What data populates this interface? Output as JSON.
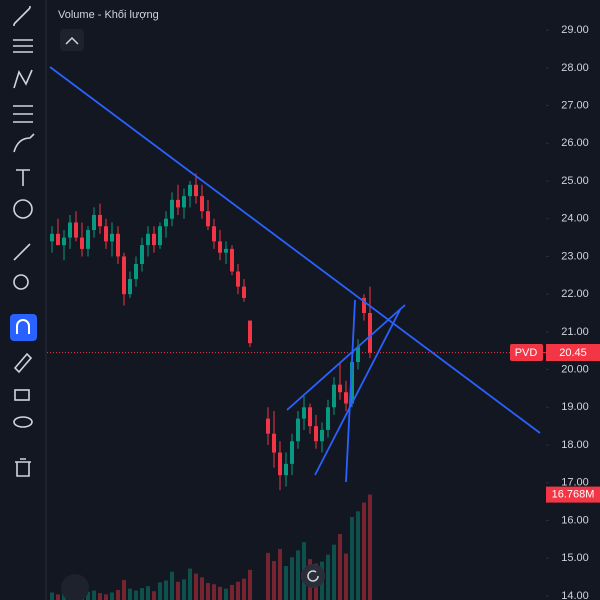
{
  "chart_data": {
    "type": "candlestick",
    "legend_text": "Volume - Khối lượng",
    "symbol": "PVD",
    "last_price": 20.45,
    "last_price_label": "20.45",
    "last_volume": 16.768,
    "last_volume_label": "16.768M",
    "ylim": [
      13.89,
      29.8
    ],
    "yticks": [
      {
        "value": 14,
        "label": "14.00"
      },
      {
        "value": 15,
        "label": "15.00"
      },
      {
        "value": 16,
        "label": "16.00"
      },
      {
        "value": 17,
        "label": "17.00"
      },
      {
        "value": 18,
        "label": "18.00"
      },
      {
        "value": 19,
        "label": "19.00"
      },
      {
        "value": 20,
        "label": "20.00"
      },
      {
        "value": 21,
        "label": "21.00"
      },
      {
        "value": 22,
        "label": "22.00"
      },
      {
        "value": 23,
        "label": "23.00"
      },
      {
        "value": 24,
        "label": "24.00"
      },
      {
        "value": 25,
        "label": "25.00"
      },
      {
        "value": 26,
        "label": "26.00"
      },
      {
        "value": 27,
        "label": "27.00"
      },
      {
        "value": 28,
        "label": "28.00"
      },
      {
        "value": 29,
        "label": "29.00"
      }
    ],
    "volume_lim": [
      0,
      17.5
    ],
    "up_color": "#089981",
    "down_color": "#f23645",
    "candles": [
      [
        23.4,
        23.8,
        23.1,
        23.6
      ],
      [
        23.6,
        24.0,
        23.3,
        23.3
      ],
      [
        23.3,
        23.7,
        22.9,
        23.5
      ],
      [
        23.5,
        24.1,
        23.2,
        23.9
      ],
      [
        23.9,
        24.2,
        23.4,
        23.5
      ],
      [
        23.5,
        23.9,
        23.0,
        23.2
      ],
      [
        23.2,
        23.8,
        23.0,
        23.7
      ],
      [
        23.7,
        24.3,
        23.5,
        24.1
      ],
      [
        24.1,
        24.4,
        23.6,
        23.8
      ],
      [
        23.8,
        24.0,
        23.2,
        23.4
      ],
      [
        23.4,
        23.9,
        23.0,
        23.6
      ],
      [
        23.6,
        23.8,
        22.8,
        23.0
      ],
      [
        23.0,
        23.1,
        21.7,
        22.0
      ],
      [
        22.0,
        22.6,
        21.9,
        22.4
      ],
      [
        22.4,
        23.0,
        22.2,
        22.8
      ],
      [
        22.8,
        23.5,
        22.6,
        23.3
      ],
      [
        23.3,
        23.8,
        23.0,
        23.6
      ],
      [
        23.6,
        23.8,
        23.1,
        23.3
      ],
      [
        23.3,
        23.9,
        23.2,
        23.8
      ],
      [
        23.8,
        24.2,
        23.5,
        24.0
      ],
      [
        24.0,
        24.7,
        23.8,
        24.5
      ],
      [
        24.5,
        24.9,
        24.1,
        24.3
      ],
      [
        24.3,
        24.8,
        24.0,
        24.6
      ],
      [
        24.6,
        25.0,
        24.3,
        24.9
      ],
      [
        24.9,
        25.2,
        24.4,
        24.6
      ],
      [
        24.6,
        24.9,
        24.0,
        24.2
      ],
      [
        24.2,
        24.5,
        23.7,
        23.8
      ],
      [
        23.8,
        24.0,
        23.2,
        23.4
      ],
      [
        23.4,
        23.7,
        22.9,
        23.1
      ],
      [
        23.1,
        23.4,
        22.8,
        23.2
      ],
      [
        23.2,
        23.3,
        22.5,
        22.6
      ],
      [
        22.6,
        22.8,
        22.0,
        22.2
      ],
      [
        22.2,
        22.4,
        21.8,
        21.9
      ],
      [
        21.3,
        21.3,
        20.6,
        20.7
      ],
      null,
      null,
      [
        18.7,
        19.0,
        18.0,
        18.3
      ],
      [
        18.3,
        18.9,
        17.4,
        17.8
      ],
      [
        17.8,
        18.1,
        16.8,
        17.2
      ],
      [
        17.2,
        17.8,
        16.9,
        17.5
      ],
      [
        17.5,
        18.3,
        17.2,
        18.1
      ],
      [
        18.1,
        18.9,
        17.9,
        18.7
      ],
      [
        18.7,
        19.3,
        18.4,
        19.0
      ],
      [
        19.0,
        19.1,
        18.3,
        18.5
      ],
      [
        18.5,
        18.8,
        17.9,
        18.1
      ],
      [
        18.1,
        18.6,
        17.8,
        18.4
      ],
      [
        18.4,
        19.2,
        18.2,
        19.0
      ],
      [
        19.0,
        19.8,
        18.8,
        19.6
      ],
      [
        19.6,
        20.2,
        19.2,
        19.4
      ],
      [
        19.4,
        19.7,
        18.9,
        19.1
      ],
      [
        19.1,
        20.3,
        19.0,
        20.2
      ],
      [
        20.2,
        20.8,
        20.0,
        20.6
      ],
      [
        21.9,
        22.0,
        21.3,
        21.5
      ],
      [
        21.5,
        22.2,
        20.3,
        20.45
      ]
    ],
    "volumes": [
      1.2,
      0.9,
      1.1,
      1.4,
      1.0,
      0.8,
      1.3,
      1.5,
      1.1,
      0.9,
      1.2,
      1.6,
      3.2,
      1.8,
      1.5,
      1.9,
      2.2,
      1.4,
      2.8,
      3.1,
      4.5,
      2.9,
      3.3,
      5.0,
      4.2,
      3.6,
      2.7,
      2.5,
      2.1,
      1.8,
      2.4,
      2.9,
      3.4,
      4.8,
      null,
      null,
      7.5,
      6.2,
      8.1,
      5.4,
      6.8,
      7.9,
      9.2,
      6.5,
      5.8,
      6.1,
      7.2,
      8.8,
      10.5,
      7.4,
      13.2,
      14.1,
      15.5,
      16.768
    ]
  }
}
